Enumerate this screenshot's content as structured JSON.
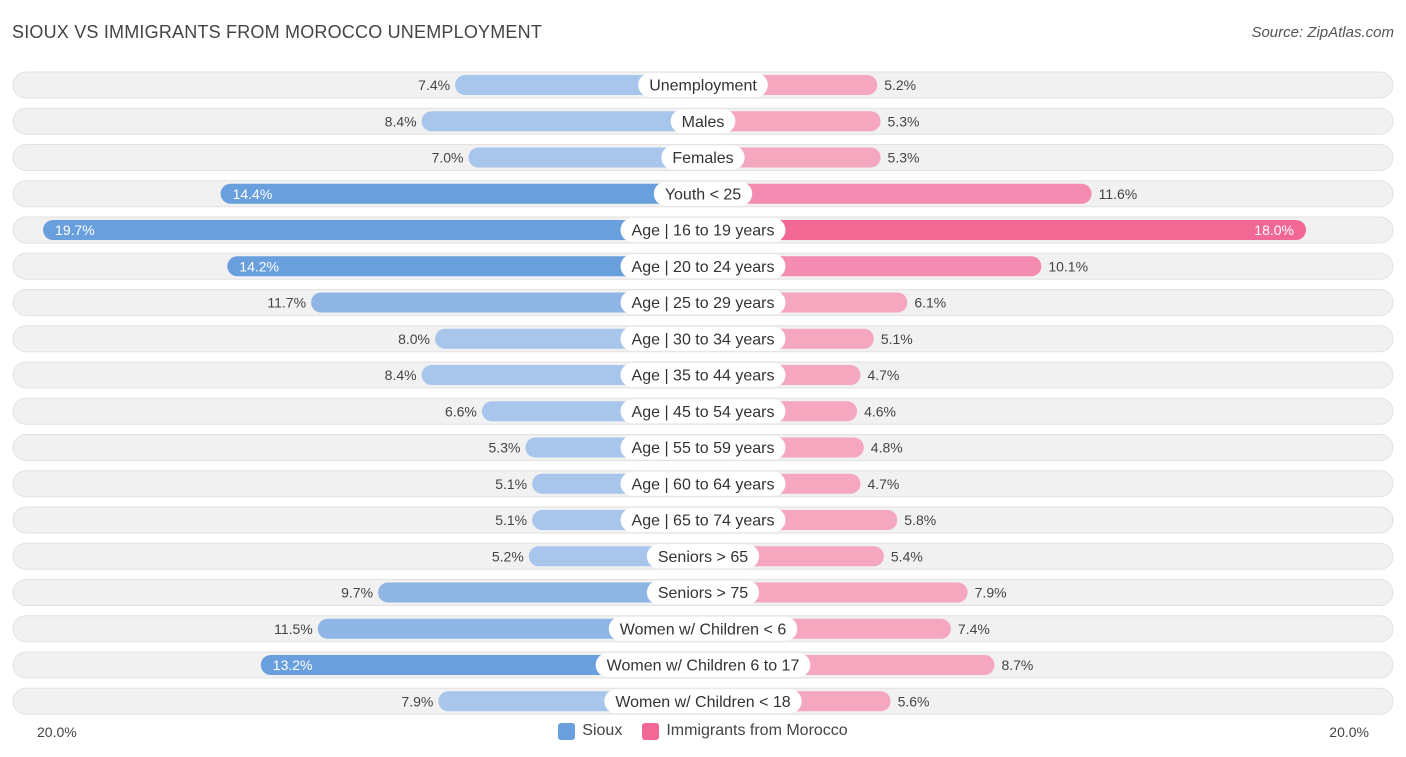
{
  "header": {
    "title": "SIOUX VS IMMIGRANTS FROM MOROCCO UNEMPLOYMENT",
    "source": "Source: ZipAtlas.com"
  },
  "colors": {
    "sioux": "#6a9fdd",
    "sioux_light": "#a8c6ec",
    "morocco": "#f06893",
    "morocco_light": "#f5a7c0",
    "row_bg": "#efefef"
  },
  "legend": {
    "sioux": "Sioux",
    "morocco": "Immigrants from Morocco"
  },
  "axis": {
    "left_label": "20.0%",
    "right_label": "20.0%"
  },
  "chart_data": {
    "type": "bar",
    "orientation": "diverging-horizontal",
    "title": "SIOUX VS IMMIGRANTS FROM MOROCCO UNEMPLOYMENT",
    "xlim": [
      0,
      20.0
    ],
    "categories": [
      "Unemployment",
      "Males",
      "Females",
      "Youth < 25",
      "Age | 16 to 19 years",
      "Age | 20 to 24 years",
      "Age | 25 to 29 years",
      "Age | 30 to 34 years",
      "Age | 35 to 44 years",
      "Age | 45 to 54 years",
      "Age | 55 to 59 years",
      "Age | 60 to 64 years",
      "Age | 65 to 74 years",
      "Seniors > 65",
      "Seniors > 75",
      "Women w/ Children < 6",
      "Women w/ Children 6 to 17",
      "Women w/ Children < 18"
    ],
    "series": [
      {
        "name": "Sioux",
        "values": [
          7.4,
          8.4,
          7.0,
          14.4,
          19.7,
          14.2,
          11.7,
          8.0,
          8.4,
          6.6,
          5.3,
          5.1,
          5.1,
          5.2,
          9.7,
          11.5,
          13.2,
          7.9
        ],
        "labels": [
          "7.4%",
          "8.4%",
          "7.0%",
          "14.4%",
          "19.7%",
          "14.2%",
          "11.7%",
          "8.0%",
          "8.4%",
          "6.6%",
          "5.3%",
          "5.1%",
          "5.1%",
          "5.2%",
          "9.7%",
          "11.5%",
          "13.2%",
          "7.9%"
        ]
      },
      {
        "name": "Immigrants from Morocco",
        "values": [
          5.2,
          5.3,
          5.3,
          11.6,
          18.0,
          10.1,
          6.1,
          5.1,
          4.7,
          4.6,
          4.8,
          4.7,
          5.8,
          5.4,
          7.9,
          7.4,
          8.7,
          5.6
        ],
        "labels": [
          "5.2%",
          "5.3%",
          "5.3%",
          "11.6%",
          "18.0%",
          "10.1%",
          "6.1%",
          "5.1%",
          "4.7%",
          "4.6%",
          "4.8%",
          "4.7%",
          "5.8%",
          "5.4%",
          "7.9%",
          "7.4%",
          "8.7%",
          "5.6%"
        ]
      }
    ]
  }
}
